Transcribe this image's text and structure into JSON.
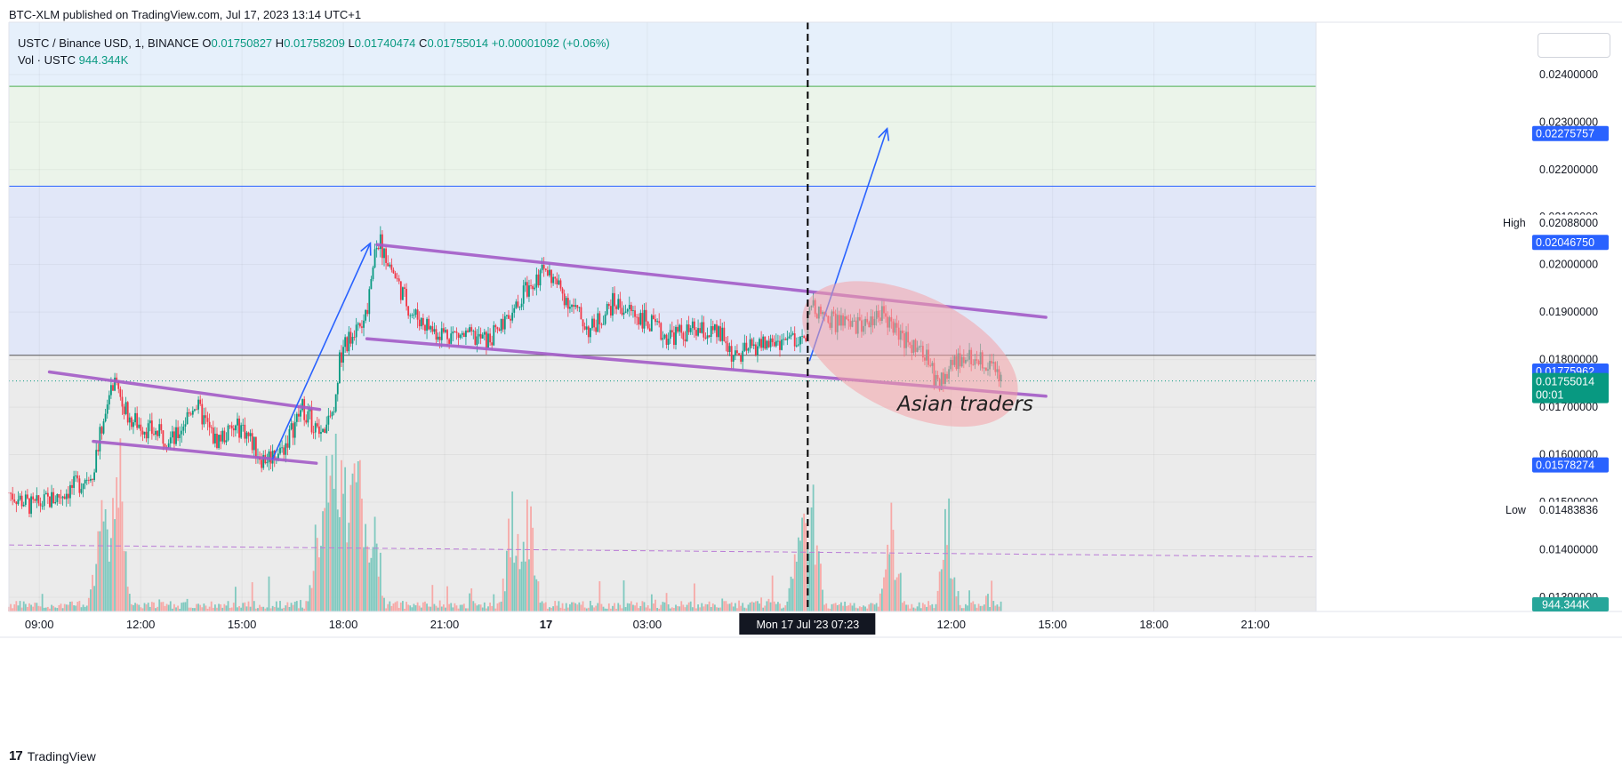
{
  "header": {
    "published": "BTC-XLM published on TradingView.com, Jul 17, 2023 13:14 UTC+1"
  },
  "legend": {
    "symbol": "USTC / Binance USD, 1, BINANCE",
    "o_label": "O",
    "o": "0.01750827",
    "h_label": "H",
    "h": "0.01758209",
    "l_label": "L",
    "l": "0.01740474",
    "c_label": "C",
    "c": "0.01755014",
    "change": "+0.00001092 (+0.06%)",
    "vol_label": "Vol · USTC",
    "vol": "944.344K"
  },
  "footer": {
    "brand": "TradingView"
  },
  "chart_data": {
    "type": "candlestick",
    "symbol": "USTC / Binance USD",
    "interval": "1",
    "exchange": "BINANCE",
    "ylim": [
      0.0127,
      0.0251
    ],
    "y_ticks": [
      "0.01300000",
      "0.01400000",
      "0.01500000",
      "0.01600000",
      "0.01700000",
      "0.01800000",
      "0.01900000",
      "0.02000000",
      "0.02100000",
      "0.02200000",
      "0.02300000",
      "0.02400000"
    ],
    "x_ticks": [
      {
        "h": 9,
        "label": "09:00"
      },
      {
        "h": 12,
        "label": "12:00"
      },
      {
        "h": 15,
        "label": "15:00"
      },
      {
        "h": 18,
        "label": "18:00"
      },
      {
        "h": 21,
        "label": "21:00"
      },
      {
        "h": 24,
        "label": "17"
      },
      {
        "h": 27,
        "label": "03:00"
      },
      {
        "h": 36,
        "label": "12:00"
      },
      {
        "h": 39,
        "label": "15:00"
      },
      {
        "h": 42,
        "label": "18:00"
      },
      {
        "h": 45,
        "label": "21:00"
      }
    ],
    "xlim_hours": [
      8.1,
      46.8
    ],
    "price_path": [
      [
        8.1,
        0.0152
      ],
      [
        8.8,
        0.0149
      ],
      [
        9.5,
        0.0151
      ],
      [
        10.2,
        0.0154
      ],
      [
        10.6,
        0.0157
      ],
      [
        11.0,
        0.0171
      ],
      [
        11.3,
        0.0177
      ],
      [
        11.6,
        0.0168
      ],
      [
        12.3,
        0.0165
      ],
      [
        13.0,
        0.0163
      ],
      [
        13.6,
        0.0171
      ],
      [
        14.2,
        0.0163
      ],
      [
        15.0,
        0.0166
      ],
      [
        15.6,
        0.0159
      ],
      [
        16.2,
        0.0161
      ],
      [
        16.8,
        0.017
      ],
      [
        17.3,
        0.0164
      ],
      [
        17.7,
        0.0168
      ],
      [
        17.9,
        0.018
      ],
      [
        18.3,
        0.0187
      ],
      [
        18.6,
        0.0186
      ],
      [
        19.0,
        0.0206
      ],
      [
        19.5,
        0.0198
      ],
      [
        20.0,
        0.019
      ],
      [
        20.7,
        0.0186
      ],
      [
        21.5,
        0.0185
      ],
      [
        22.3,
        0.0184
      ],
      [
        23.0,
        0.0189
      ],
      [
        23.5,
        0.0196
      ],
      [
        24.0,
        0.0199
      ],
      [
        24.6,
        0.0193
      ],
      [
        25.3,
        0.0186
      ],
      [
        26.0,
        0.0192
      ],
      [
        26.8,
        0.0189
      ],
      [
        27.5,
        0.0185
      ],
      [
        28.5,
        0.0186
      ],
      [
        29.2,
        0.0185
      ],
      [
        29.6,
        0.018
      ],
      [
        30.2,
        0.0183
      ],
      [
        31.0,
        0.0184
      ],
      [
        31.7,
        0.0185
      ],
      [
        31.8,
        0.0191
      ],
      [
        32.5,
        0.0188
      ],
      [
        33.2,
        0.0187
      ],
      [
        34.0,
        0.019
      ],
      [
        34.6,
        0.0184
      ],
      [
        35.2,
        0.0181
      ],
      [
        35.6,
        0.0175
      ],
      [
        36.3,
        0.0181
      ],
      [
        37.0,
        0.018
      ],
      [
        37.5,
        0.0176
      ]
    ],
    "volume_spikes_hours": [
      10.8,
      11.2,
      11.4,
      17.3,
      17.6,
      17.8,
      18.0,
      18.3,
      18.5,
      18.9,
      23.0,
      23.5,
      31.5,
      31.9,
      34.2,
      35.9
    ],
    "last_price": "0.01755014",
    "countdown": "00:01",
    "price_tags": [
      {
        "label": "0.02275757",
        "value": 0.02275757,
        "color": "#2962ff"
      },
      {
        "label": "0.02046750",
        "value": 0.0204675,
        "color": "#2962ff"
      },
      {
        "label": "0.01775962",
        "value": 0.01775962,
        "color": "#2962ff"
      },
      {
        "label": "0.01578274",
        "value": 0.01578274,
        "color": "#2962ff"
      }
    ],
    "high": {
      "label": "High",
      "value": "0.02088000"
    },
    "low": {
      "label": "Low",
      "value": "0.01483836"
    },
    "volume_tag": "944.344K",
    "crosshair_label": "Mon 17 Jul '23   07:23",
    "zones": [
      {
        "from": 0.02375,
        "to": 0.0251,
        "color": "#e6f0fb"
      },
      {
        "from": 0.02165,
        "to": 0.02375,
        "color": "#ebf4ea"
      },
      {
        "from": 0.01809,
        "to": 0.02165,
        "color": "#e1e7f8"
      },
      {
        "from": 0.0127,
        "to": 0.01809,
        "color": "#ebebeb"
      }
    ],
    "channel_lines": [
      {
        "from": [
          9.3,
          0.01774
        ],
        "to": [
          17.3,
          0.01695
        ]
      },
      {
        "from": [
          10.6,
          0.01628
        ],
        "to": [
          17.2,
          0.01582
        ]
      },
      {
        "from": [
          19.0,
          0.02042
        ],
        "to": [
          38.8,
          0.01889
        ]
      },
      {
        "from": [
          18.7,
          0.01844
        ],
        "to": [
          38.8,
          0.01723
        ]
      }
    ],
    "arrows": [
      {
        "from": [
          15.9,
          0.0159
        ],
        "to": [
          18.8,
          0.02045
        ]
      },
      {
        "from": [
          31.8,
          0.01797
        ],
        "to": [
          34.1,
          0.02286
        ]
      }
    ],
    "annotation": "Asian traders"
  }
}
